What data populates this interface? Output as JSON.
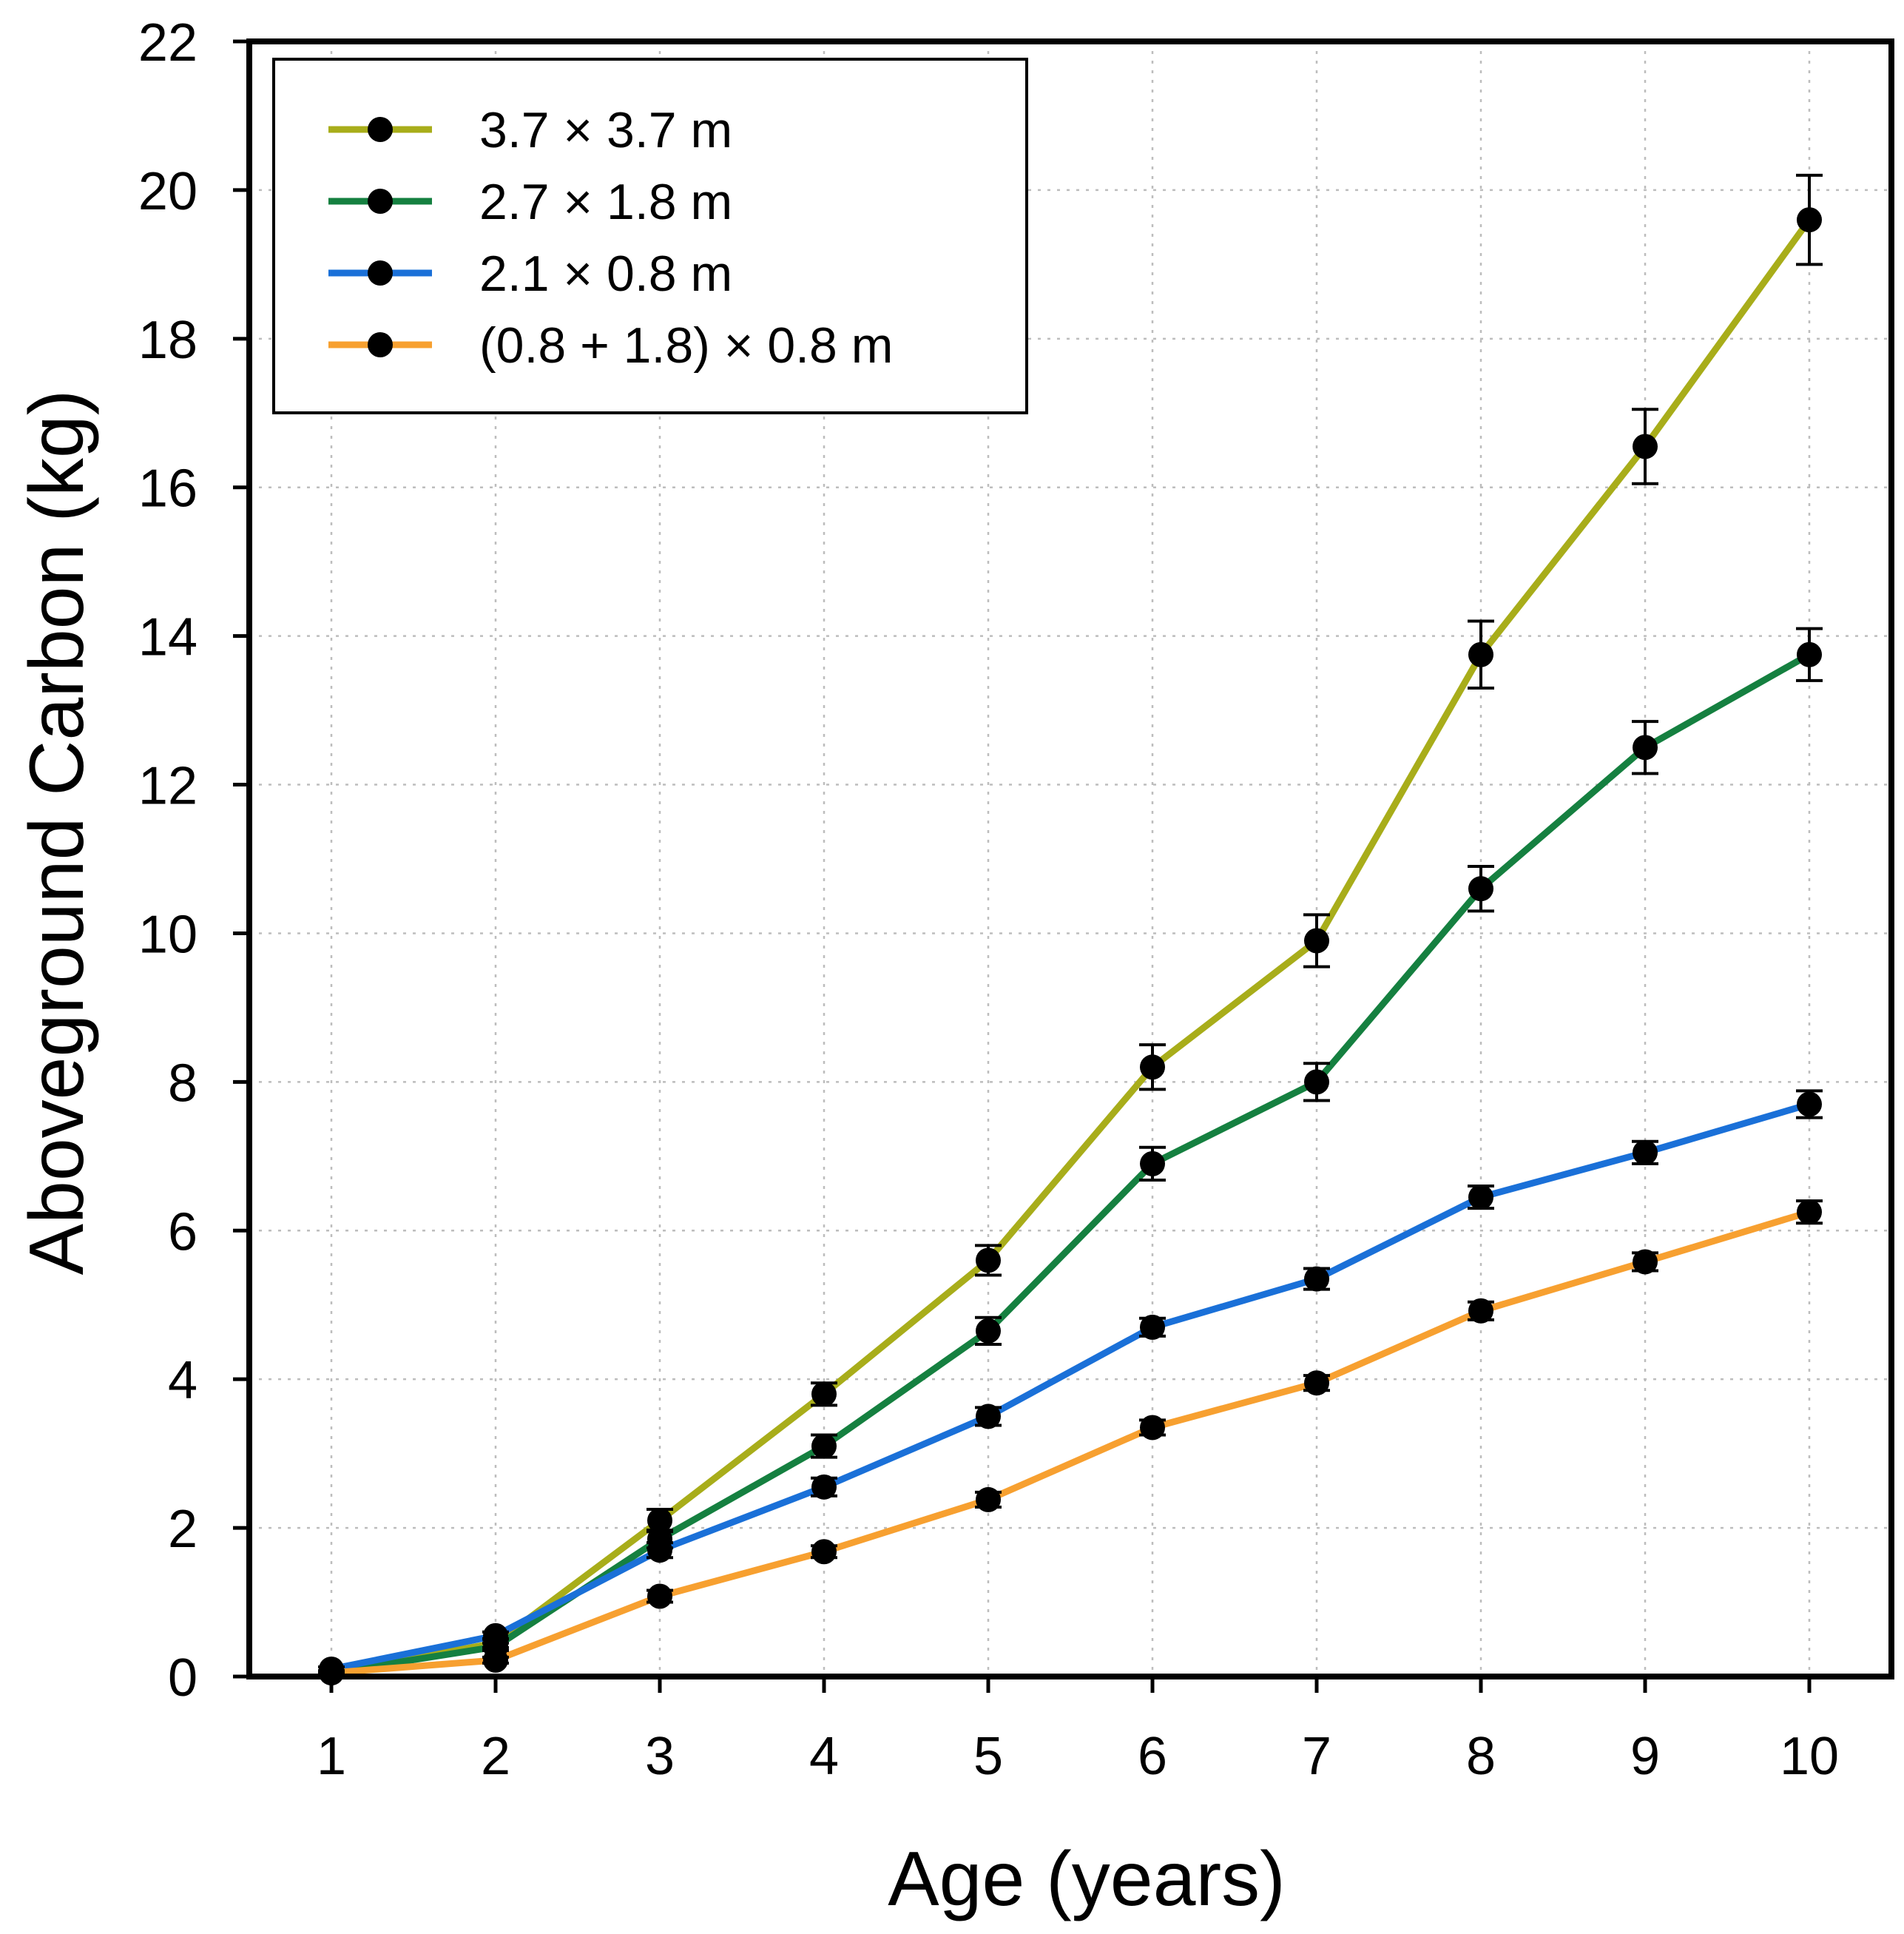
{
  "chart_data": {
    "type": "line",
    "title": "",
    "xlabel": "Age (years)",
    "ylabel": "Aboveground Carbon (kg)",
    "xlim": [
      0.5,
      10.5
    ],
    "ylim": [
      0,
      22
    ],
    "xticks": [
      1,
      2,
      3,
      4,
      5,
      6,
      7,
      8,
      9,
      10
    ],
    "yticks": [
      0,
      2,
      4,
      6,
      8,
      10,
      12,
      14,
      16,
      18,
      20,
      22
    ],
    "grid": true,
    "legend_position": "top-left",
    "x": [
      1,
      2,
      3,
      4,
      5,
      6,
      7,
      8,
      9,
      10
    ],
    "series": [
      {
        "name": "3.7 × 3.7 m",
        "color": "#a8ad1a",
        "values": [
          0.05,
          0.45,
          2.1,
          3.8,
          5.6,
          8.2,
          9.9,
          13.75,
          16.55,
          19.6
        ],
        "errors": [
          0.03,
          0.06,
          0.15,
          0.15,
          0.2,
          0.3,
          0.35,
          0.45,
          0.5,
          0.6
        ]
      },
      {
        "name": "2.7 × 1.8 m",
        "color": "#158040",
        "values": [
          0.05,
          0.4,
          1.85,
          3.1,
          4.65,
          6.9,
          8.0,
          10.6,
          12.5,
          13.75
        ],
        "errors": [
          0.03,
          0.05,
          0.12,
          0.15,
          0.18,
          0.22,
          0.25,
          0.3,
          0.35,
          0.35
        ]
      },
      {
        "name": "2.1 × 0.8 m",
        "color": "#1a70d8",
        "values": [
          0.1,
          0.55,
          1.7,
          2.55,
          3.5,
          4.7,
          5.35,
          6.45,
          7.05,
          7.7
        ],
        "errors": [
          0.03,
          0.05,
          0.1,
          0.12,
          0.12,
          0.12,
          0.14,
          0.15,
          0.15,
          0.18
        ]
      },
      {
        "name": "(0.8 + 1.8) × 0.8 m",
        "color": "#f7a030",
        "values": [
          0.05,
          0.22,
          1.08,
          1.68,
          2.38,
          3.35,
          3.95,
          4.92,
          5.58,
          6.25
        ],
        "errors": [
          0.02,
          0.04,
          0.08,
          0.08,
          0.1,
          0.1,
          0.1,
          0.12,
          0.12,
          0.15
        ]
      }
    ]
  }
}
